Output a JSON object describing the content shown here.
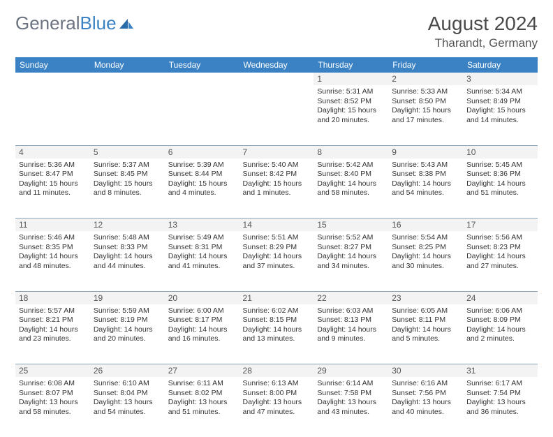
{
  "brand": {
    "name_part1": "General",
    "name_part2": "Blue"
  },
  "title": {
    "month_year": "August 2024",
    "location": "Tharandt, Germany"
  },
  "colors": {
    "header_bg": "#3b82c4",
    "header_text": "#ffffff",
    "daynum_bg": "#f3f3f3",
    "border": "#8aa5b8",
    "text": "#333333",
    "logo_gray": "#6b7280",
    "logo_blue": "#3b82c4"
  },
  "weekdays": [
    "Sunday",
    "Monday",
    "Tuesday",
    "Wednesday",
    "Thursday",
    "Friday",
    "Saturday"
  ],
  "weeks": [
    [
      null,
      null,
      null,
      null,
      {
        "n": "1",
        "sr": "5:31 AM",
        "ss": "8:52 PM",
        "dh": "15",
        "dm": "20"
      },
      {
        "n": "2",
        "sr": "5:33 AM",
        "ss": "8:50 PM",
        "dh": "15",
        "dm": "17"
      },
      {
        "n": "3",
        "sr": "5:34 AM",
        "ss": "8:49 PM",
        "dh": "15",
        "dm": "14"
      }
    ],
    [
      {
        "n": "4",
        "sr": "5:36 AM",
        "ss": "8:47 PM",
        "dh": "15",
        "dm": "11"
      },
      {
        "n": "5",
        "sr": "5:37 AM",
        "ss": "8:45 PM",
        "dh": "15",
        "dm": "8"
      },
      {
        "n": "6",
        "sr": "5:39 AM",
        "ss": "8:44 PM",
        "dh": "15",
        "dm": "4"
      },
      {
        "n": "7",
        "sr": "5:40 AM",
        "ss": "8:42 PM",
        "dh": "15",
        "dm": "1"
      },
      {
        "n": "8",
        "sr": "5:42 AM",
        "ss": "8:40 PM",
        "dh": "14",
        "dm": "58"
      },
      {
        "n": "9",
        "sr": "5:43 AM",
        "ss": "8:38 PM",
        "dh": "14",
        "dm": "54"
      },
      {
        "n": "10",
        "sr": "5:45 AM",
        "ss": "8:36 PM",
        "dh": "14",
        "dm": "51"
      }
    ],
    [
      {
        "n": "11",
        "sr": "5:46 AM",
        "ss": "8:35 PM",
        "dh": "14",
        "dm": "48"
      },
      {
        "n": "12",
        "sr": "5:48 AM",
        "ss": "8:33 PM",
        "dh": "14",
        "dm": "44"
      },
      {
        "n": "13",
        "sr": "5:49 AM",
        "ss": "8:31 PM",
        "dh": "14",
        "dm": "41"
      },
      {
        "n": "14",
        "sr": "5:51 AM",
        "ss": "8:29 PM",
        "dh": "14",
        "dm": "37"
      },
      {
        "n": "15",
        "sr": "5:52 AM",
        "ss": "8:27 PM",
        "dh": "14",
        "dm": "34"
      },
      {
        "n": "16",
        "sr": "5:54 AM",
        "ss": "8:25 PM",
        "dh": "14",
        "dm": "30"
      },
      {
        "n": "17",
        "sr": "5:56 AM",
        "ss": "8:23 PM",
        "dh": "14",
        "dm": "27"
      }
    ],
    [
      {
        "n": "18",
        "sr": "5:57 AM",
        "ss": "8:21 PM",
        "dh": "14",
        "dm": "23"
      },
      {
        "n": "19",
        "sr": "5:59 AM",
        "ss": "8:19 PM",
        "dh": "14",
        "dm": "20"
      },
      {
        "n": "20",
        "sr": "6:00 AM",
        "ss": "8:17 PM",
        "dh": "14",
        "dm": "16"
      },
      {
        "n": "21",
        "sr": "6:02 AM",
        "ss": "8:15 PM",
        "dh": "14",
        "dm": "13"
      },
      {
        "n": "22",
        "sr": "6:03 AM",
        "ss": "8:13 PM",
        "dh": "14",
        "dm": "9"
      },
      {
        "n": "23",
        "sr": "6:05 AM",
        "ss": "8:11 PM",
        "dh": "14",
        "dm": "5"
      },
      {
        "n": "24",
        "sr": "6:06 AM",
        "ss": "8:09 PM",
        "dh": "14",
        "dm": "2"
      }
    ],
    [
      {
        "n": "25",
        "sr": "6:08 AM",
        "ss": "8:07 PM",
        "dh": "13",
        "dm": "58"
      },
      {
        "n": "26",
        "sr": "6:10 AM",
        "ss": "8:04 PM",
        "dh": "13",
        "dm": "54"
      },
      {
        "n": "27",
        "sr": "6:11 AM",
        "ss": "8:02 PM",
        "dh": "13",
        "dm": "51"
      },
      {
        "n": "28",
        "sr": "6:13 AM",
        "ss": "8:00 PM",
        "dh": "13",
        "dm": "47"
      },
      {
        "n": "29",
        "sr": "6:14 AM",
        "ss": "7:58 PM",
        "dh": "13",
        "dm": "43"
      },
      {
        "n": "30",
        "sr": "6:16 AM",
        "ss": "7:56 PM",
        "dh": "13",
        "dm": "40"
      },
      {
        "n": "31",
        "sr": "6:17 AM",
        "ss": "7:54 PM",
        "dh": "13",
        "dm": "36"
      }
    ]
  ],
  "labels": {
    "sunrise": "Sunrise:",
    "sunset": "Sunset:",
    "daylight": "Daylight:",
    "hours": "hours",
    "and": "and",
    "minutes": "minutes."
  }
}
